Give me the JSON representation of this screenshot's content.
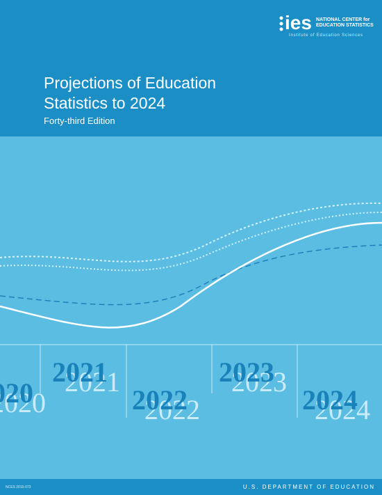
{
  "header": {
    "logo": {
      "mark": "ies",
      "line1": "NATIONAL CENTER for",
      "line2": "EDUCATION STATISTICS",
      "line3": "Institute of Education Sciences"
    },
    "title": [
      "Projections of Education",
      "Statistics to 2024"
    ],
    "subtitle": "Forty-third Edition"
  },
  "years": [
    "2020",
    "2021",
    "2022",
    "2023",
    "2024"
  ],
  "footer": {
    "report_number": "NCES 2015-073",
    "department": "U.S. DEPARTMENT OF EDUCATION"
  }
}
